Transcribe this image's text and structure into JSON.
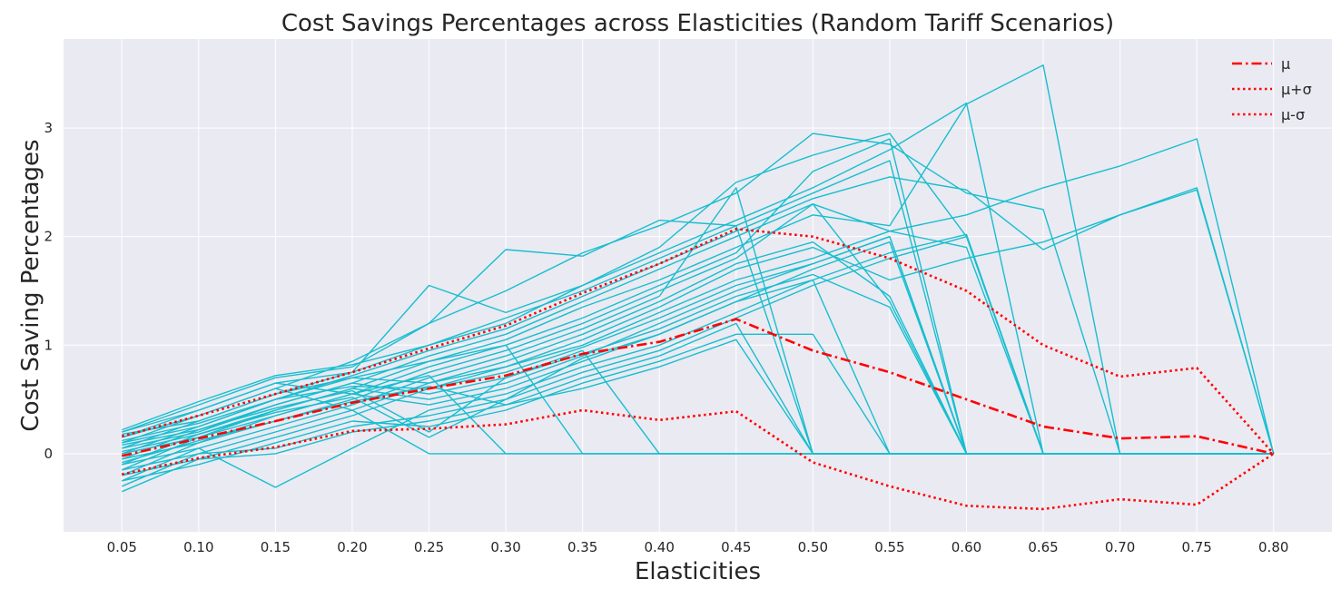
{
  "chart_data": {
    "type": "line",
    "title": "Cost Savings Percentages across Elasticities (Random Tariff Scenarios)",
    "xlabel": "Elasticities",
    "ylabel": "Cost Saving Percentages",
    "x": [
      0.05,
      0.1,
      0.15,
      0.2,
      0.25,
      0.3,
      0.35,
      0.4,
      0.45,
      0.5,
      0.55,
      0.6,
      0.65,
      0.7,
      0.75,
      0.8
    ],
    "x_tick_labels": [
      "0.05",
      "0.10",
      "0.15",
      "0.20",
      "0.25",
      "0.30",
      "0.35",
      "0.40",
      "0.45",
      "0.50",
      "0.55",
      "0.60",
      "0.65",
      "0.70",
      "0.75",
      "0.80"
    ],
    "y_ticks": [
      0,
      1,
      2,
      3
    ],
    "y_tick_labels": [
      "0",
      "1",
      "2",
      "3"
    ],
    "ylim": [
      -0.72,
      3.82
    ],
    "xlim": [
      0.012,
      0.838
    ],
    "grid": true,
    "background": "#eaeaf2",
    "scenario_color": "#17becf",
    "stat_color": "#ff0000",
    "legend_position": "top-right",
    "scenario_series": [
      [
        0.2,
        0.45,
        0.7,
        0.8,
        1.2,
        1.5,
        1.85,
        2.1,
        2.4,
        2.95,
        2.85,
        2.4,
        2.25,
        0.0,
        0.0,
        0.0
      ],
      [
        0.15,
        0.4,
        0.65,
        0.75,
        1.55,
        1.3,
        1.55,
        1.9,
        2.5,
        2.75,
        2.95,
        2.0,
        0.0,
        0.0,
        0.0,
        0.0
      ],
      [
        0.1,
        0.35,
        0.6,
        0.85,
        1.2,
        1.88,
        1.82,
        2.15,
        2.1,
        0.0,
        0.0,
        0.0,
        0.0,
        0.0,
        0.0,
        0.0
      ],
      [
        0.05,
        0.3,
        0.55,
        0.75,
        1.0,
        1.2,
        1.55,
        1.85,
        2.15,
        2.45,
        2.8,
        3.23,
        0.0,
        0.0,
        0.0,
        0.0
      ],
      [
        0.0,
        0.25,
        0.5,
        0.72,
        0.95,
        1.15,
        1.45,
        1.75,
        2.05,
        2.35,
        2.55,
        2.43,
        1.88,
        2.2,
        2.45,
        0.0
      ],
      [
        -0.05,
        0.22,
        0.45,
        0.65,
        0.9,
        1.1,
        1.4,
        1.7,
        2.0,
        2.3,
        2.05,
        2.2,
        2.45,
        2.65,
        2.9,
        0.0
      ],
      [
        -0.1,
        0.18,
        0.4,
        0.6,
        0.85,
        1.05,
        1.35,
        1.6,
        1.9,
        2.2,
        2.1,
        3.22,
        3.58,
        0.0,
        0.0,
        0.0
      ],
      [
        -0.15,
        0.15,
        0.35,
        0.55,
        0.8,
        1.0,
        1.25,
        1.55,
        1.85,
        2.6,
        2.9,
        0.0,
        0.0,
        0.0,
        0.0,
        0.0
      ],
      [
        -0.2,
        0.1,
        0.3,
        0.5,
        0.75,
        0.95,
        1.2,
        1.5,
        1.8,
        2.3,
        1.4,
        0.0,
        0.0,
        0.0,
        0.0,
        0.0
      ],
      [
        -0.25,
        0.05,
        0.25,
        0.45,
        0.7,
        0.9,
        1.15,
        1.45,
        2.45,
        0.0,
        0.0,
        0.0,
        0.0,
        0.0,
        0.0,
        0.0
      ],
      [
        -0.3,
        0.0,
        0.2,
        0.4,
        0.65,
        0.85,
        1.1,
        1.4,
        1.75,
        1.95,
        1.45,
        0.0,
        0.0,
        0.0,
        0.0,
        0.0
      ],
      [
        -0.35,
        -0.05,
        0.15,
        0.35,
        0.6,
        0.8,
        1.05,
        1.35,
        1.7,
        1.9,
        1.6,
        1.8,
        1.95,
        2.2,
        2.43,
        0.0
      ],
      [
        0.2,
        0.4,
        0.65,
        0.55,
        0.72,
        0.0,
        0.0,
        0.0,
        0.0,
        0.0,
        0.0,
        0.0,
        0.0,
        0.0,
        0.0,
        0.0
      ],
      [
        0.15,
        0.35,
        0.6,
        0.4,
        0.0,
        0.0,
        0.0,
        0.0,
        0.0,
        0.0,
        0.0,
        0.0,
        0.0,
        0.0,
        0.0,
        0.0
      ],
      [
        0.1,
        0.25,
        0.5,
        0.7,
        0.85,
        1.0,
        0.0,
        0.0,
        0.0,
        0.0,
        0.0,
        0.0,
        0.0,
        0.0,
        0.0,
        0.0
      ],
      [
        0.05,
        0.2,
        0.45,
        0.65,
        0.55,
        0.7,
        0.95,
        0.0,
        0.0,
        0.0,
        0.0,
        0.0,
        0.0,
        0.0,
        0.0,
        0.0
      ],
      [
        0.0,
        0.15,
        0.4,
        0.6,
        0.5,
        0.65,
        0.9,
        1.2,
        1.5,
        1.75,
        2.0,
        0.0,
        0.0,
        0.0,
        0.0,
        0.0
      ],
      [
        -0.05,
        0.1,
        0.35,
        0.55,
        0.45,
        0.6,
        0.85,
        1.1,
        1.4,
        1.7,
        1.95,
        0.0,
        0.0,
        0.0,
        0.0,
        0.0
      ],
      [
        -0.1,
        0.05,
        -0.31,
        0.05,
        0.4,
        0.55,
        0.8,
        1.0,
        1.3,
        1.6,
        1.85,
        2.02,
        0.0,
        0.0,
        0.0,
        0.0
      ],
      [
        -0.15,
        0.0,
        0.05,
        0.25,
        0.35,
        0.5,
        0.75,
        0.95,
        1.25,
        1.55,
        1.8,
        2.0,
        0.0,
        0.0,
        0.0,
        0.0
      ],
      [
        -0.2,
        -0.05,
        0.0,
        0.2,
        0.3,
        0.45,
        0.7,
        0.9,
        1.2,
        0.0,
        0.0,
        0.0,
        0.0,
        0.0,
        0.0,
        0.0
      ],
      [
        -0.25,
        -0.1,
        0.1,
        0.3,
        0.25,
        0.4,
        0.65,
        0.85,
        1.1,
        1.1,
        0.0,
        0.0,
        0.0,
        0.0,
        0.0,
        0.0
      ],
      [
        0.18,
        0.3,
        0.55,
        0.7,
        0.65,
        0.8,
        1.0,
        1.3,
        1.6,
        1.8,
        2.05,
        1.9,
        0.0,
        0.0,
        0.0,
        0.0
      ],
      [
        0.12,
        0.28,
        0.5,
        0.62,
        0.6,
        0.75,
        0.98,
        1.25,
        1.55,
        1.75,
        2.0,
        0.0,
        0.0,
        0.0,
        0.0,
        0.0
      ],
      [
        0.08,
        0.22,
        0.42,
        0.58,
        0.2,
        0.7,
        0.92,
        1.15,
        1.45,
        1.65,
        1.35,
        0.0,
        0.0,
        0.0,
        0.0,
        0.0
      ],
      [
        0.02,
        0.18,
        0.38,
        0.52,
        0.15,
        0.5,
        0.88,
        1.1,
        1.4,
        1.6,
        0.0,
        0.0,
        0.0,
        0.0,
        0.0,
        0.0
      ],
      [
        -0.08,
        0.12,
        0.3,
        0.48,
        0.62,
        0.45,
        0.6,
        0.8,
        1.05,
        0.0,
        0.0,
        0.0,
        0.0,
        0.0,
        0.0,
        0.0
      ],
      [
        0.22,
        0.48,
        0.72,
        0.82,
        1.0,
        1.25,
        1.5,
        1.8,
        2.1,
        2.4,
        2.7,
        0.0,
        0.0,
        0.0,
        0.0,
        0.0
      ]
    ],
    "stat_series": [
      {
        "name": "μ",
        "dash": "dashdot",
        "values": [
          -0.02,
          0.14,
          0.3,
          0.47,
          0.6,
          0.72,
          0.92,
          1.03,
          1.24,
          0.95,
          0.75,
          0.5,
          0.25,
          0.14,
          0.16,
          0.0
        ]
      },
      {
        "name": "μ+σ",
        "dash": "dotted",
        "values": [
          0.16,
          0.35,
          0.55,
          0.75,
          0.97,
          1.18,
          1.48,
          1.75,
          2.07,
          2.0,
          1.8,
          1.5,
          1.0,
          0.71,
          0.79,
          0.0
        ]
      },
      {
        "name": "μ-σ",
        "dash": "dotted",
        "values": [
          -0.19,
          -0.04,
          0.06,
          0.21,
          0.23,
          0.27,
          0.4,
          0.31,
          0.39,
          -0.08,
          -0.3,
          -0.48,
          -0.51,
          -0.42,
          -0.47,
          0.0
        ]
      }
    ]
  }
}
